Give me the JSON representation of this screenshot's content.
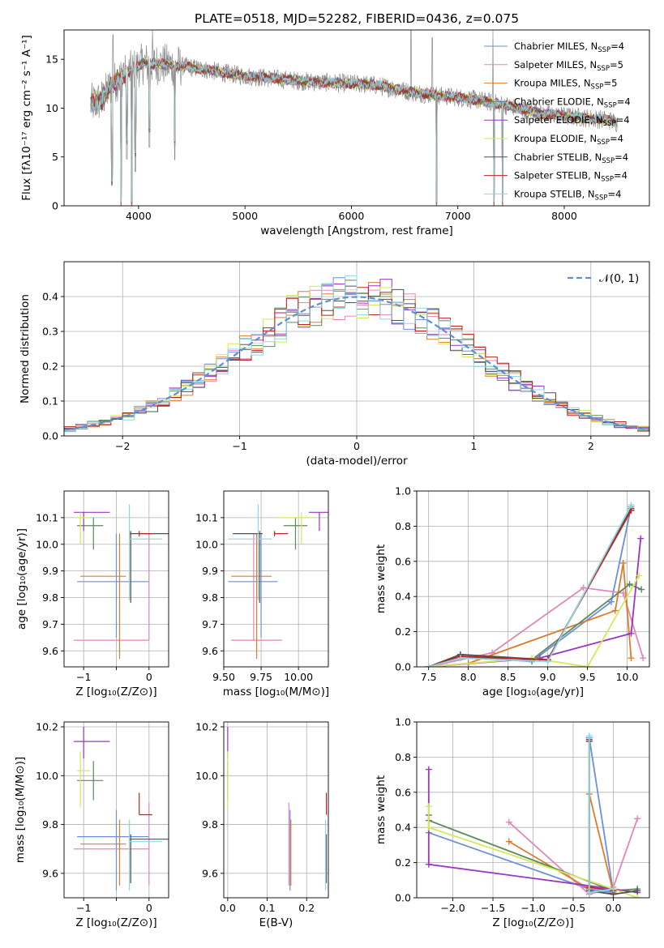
{
  "figure": {
    "title": "PLATE=0518, MJD=52282, FIBERID=0436, z=0.075"
  },
  "colors": {
    "Chabrier MILES": "#6c8fdc",
    "Salpeter MILES": "#e486b8",
    "Kroupa MILES": "#e07b2c",
    "Chabrier ELODIE": "#5c8a5c",
    "Salpeter ELODIE": "#9c35c0",
    "Kroupa ELODIE": "#d4e85a",
    "Chabrier STELIB": "#505050",
    "Salpeter STELIB": "#c0241c",
    "Kroupa STELIB": "#8ad8e4",
    "data": "#8c8c8c",
    "gaussian": "#5b8fd8",
    "grid": "#b0b0b0"
  },
  "chart_data": [
    {
      "id": "spectrum",
      "type": "line",
      "xlabel": "wavelength [Angstrom, rest frame]",
      "ylabel": "Flux [fλ10⁻¹⁷ erg cm⁻² s⁻¹ A⁻¹]",
      "xlim": [
        3300,
        8800
      ],
      "ylim": [
        0,
        18
      ],
      "xticks": [
        4000,
        5000,
        6000,
        7000,
        8000
      ],
      "yticks": [
        0,
        5,
        10,
        15
      ],
      "grid": false,
      "legend_position": "top-right",
      "legend": [
        {
          "label": "Chabrier MILES, N",
          "sub": "SSP",
          "suffix": "=4",
          "color_key": "Chabrier MILES"
        },
        {
          "label": "Salpeter MILES, N",
          "sub": "SSP",
          "suffix": "=5",
          "color_key": "Salpeter MILES"
        },
        {
          "label": "Kroupa MILES, N",
          "sub": "SSP",
          "suffix": "=5",
          "color_key": "Kroupa MILES"
        },
        {
          "label": "Chabrier ELODIE, N",
          "sub": "SSP",
          "suffix": "=4",
          "color_key": "Chabrier ELODIE"
        },
        {
          "label": "Salpeter ELODIE, N",
          "sub": "SSP",
          "suffix": "=4",
          "color_key": "Salpeter ELODIE"
        },
        {
          "label": "Kroupa ELODIE, N",
          "sub": "SSP",
          "suffix": "=4",
          "color_key": "Kroupa ELODIE"
        },
        {
          "label": "Chabrier STELIB, N",
          "sub": "SSP",
          "suffix": "=4",
          "color_key": "Chabrier STELIB"
        },
        {
          "label": "Salpeter STELIB, N",
          "sub": "SSP",
          "suffix": "=4",
          "color_key": "Salpeter STELIB"
        },
        {
          "label": "Kroupa STELIB, N",
          "sub": "SSP",
          "suffix": "=4",
          "color_key": "Kroupa STELIB"
        }
      ],
      "continuum": {
        "x": [
          3550,
          3650,
          3750,
          3850,
          3950,
          4050,
          4200,
          4400,
          4600,
          4800,
          5000,
          5200,
          5400,
          5600,
          5800,
          6000,
          6200,
          6400,
          6600,
          6800,
          7000,
          7200,
          7400,
          7600,
          7800,
          8000,
          8200,
          8400,
          8500
        ],
        "y": [
          10.4,
          10.8,
          12.4,
          13.3,
          13.9,
          14.6,
          14.5,
          14.3,
          14.0,
          13.6,
          13.3,
          13.1,
          12.9,
          12.7,
          12.6,
          12.5,
          12.4,
          12.0,
          11.6,
          11.3,
          11.1,
          10.8,
          10.4,
          9.9,
          9.4,
          9.2,
          9.0,
          8.8,
          8.5
        ]
      },
      "model_dips": [
        {
          "x": 3750,
          "y": 2.1
        },
        {
          "x": 3835,
          "y": 0
        },
        {
          "x": 3890,
          "y": 6.3
        },
        {
          "x": 3935,
          "y": 0
        },
        {
          "x": 3970,
          "y": 5.0
        },
        {
          "x": 4102,
          "y": 7.5
        },
        {
          "x": 4340,
          "y": 6.2
        },
        {
          "x": 6800,
          "y": 0
        },
        {
          "x": 7340,
          "y": 0
        },
        {
          "x": 7420,
          "y": 0
        }
      ],
      "data_spikes": [
        {
          "x": 3760,
          "y": 17.5
        },
        {
          "x": 3970,
          "y": 18
        },
        {
          "x": 4130,
          "y": 18
        },
        {
          "x": 6560,
          "y": 18
        },
        {
          "x": 6760,
          "y": 17.2
        },
        {
          "x": 7330,
          "y": 18
        }
      ],
      "data_noise": 1.0
    },
    {
      "id": "residuals",
      "type": "bar",
      "xlabel": "(data-model)/error",
      "ylabel": "Normed distribution",
      "xlim": [
        -2.5,
        2.5
      ],
      "ylim": [
        0,
        0.5
      ],
      "xticks": [
        -2,
        -1,
        0,
        1,
        2
      ],
      "yticks": [
        0.0,
        0.1,
        0.2,
        0.3,
        0.4
      ],
      "grid": true,
      "legend_position": "top-right",
      "legend_label": "𝒩(0, 1)",
      "bins": {
        "start": -2.5,
        "width": 0.1,
        "count": 50
      },
      "gaussian": {
        "mean": 0,
        "sigma": 1
      }
    },
    {
      "id": "age-vs-Z",
      "type": "scatter",
      "xlabel": "Z [log₁₀(Z/Z⊙)]",
      "ylabel": "age  [log₁₀(age/yr)]",
      "xlim": [
        -1.3,
        0.3
      ],
      "ylim": [
        9.54,
        10.2
      ],
      "xticks": [
        -1,
        -0.5,
        0
      ],
      "xticklabels": [
        "−1",
        "",
        "0"
      ],
      "yticks": [
        9.6,
        9.7,
        9.8,
        9.9,
        10.0,
        10.1
      ],
      "yticklabels": [
        "9.6",
        "9.7",
        "9.8",
        "9.9",
        "10.0",
        "10.1"
      ],
      "grid": true
    },
    {
      "id": "age-vs-mass",
      "type": "scatter",
      "xlabel": "mass [log₁₀(M/M⊙)]",
      "ylabel": "",
      "xlim": [
        9.5,
        10.2
      ],
      "ylim": [
        9.54,
        10.2
      ],
      "xticks": [
        9.5,
        9.75,
        10.0
      ],
      "xticklabels": [
        "9.50",
        "9.75",
        "10.00"
      ],
      "yticks": [
        9.6,
        9.7,
        9.8,
        9.9,
        10.0,
        10.1
      ],
      "yticklabels": [
        "9.6",
        "9.7",
        "9.8",
        "9.9",
        "10.0",
        "10.1"
      ],
      "grid": true
    },
    {
      "id": "mass-weight-vs-age",
      "type": "line",
      "xlabel": "age  [log₁₀(age/yr)]",
      "ylabel": "mass weight",
      "xlim": [
        7.35,
        10.28
      ],
      "ylim": [
        0,
        1
      ],
      "xticks": [
        7.5,
        8.0,
        8.5,
        9.0,
        9.5,
        10.0
      ],
      "xticklabels": [
        "7.5",
        "8.0",
        "8.5",
        "9.0",
        "9.5",
        "10.0"
      ],
      "yticks": [
        0,
        0.2,
        0.4,
        0.6,
        0.8,
        1.0
      ],
      "yticklabels": [
        "0.0",
        "0.2",
        "0.4",
        "0.6",
        "0.8",
        "1.0"
      ],
      "grid": true,
      "series": [
        {
          "color_key": "Chabrier MILES",
          "points": [
            [
              7.5,
              0.0
            ],
            [
              7.9,
              0.06
            ],
            [
              8.8,
              0.03
            ],
            [
              9.8,
              0.37
            ],
            [
              10.05,
              0.91
            ]
          ]
        },
        {
          "color_key": "Salpeter MILES",
          "points": [
            [
              7.5,
              0.0
            ],
            [
              8.3,
              0.08
            ],
            [
              9.45,
              0.45
            ],
            [
              9.95,
              0.42
            ],
            [
              10.2,
              0.05
            ]
          ]
        },
        {
          "color_key": "Kroupa MILES",
          "points": [
            [
              7.5,
              0.0
            ],
            [
              8.0,
              0.02
            ],
            [
              9.85,
              0.32
            ],
            [
              9.95,
              0.59
            ],
            [
              10.05,
              0.05
            ]
          ]
        },
        {
          "color_key": "Chabrier ELODIE",
          "points": [
            [
              7.5,
              0.0
            ],
            [
              7.9,
              0.05
            ],
            [
              8.8,
              0.04
            ],
            [
              10.03,
              0.47
            ],
            [
              10.18,
              0.44
            ]
          ]
        },
        {
          "color_key": "Salpeter ELODIE",
          "points": [
            [
              7.5,
              0.0
            ],
            [
              8.9,
              0.05
            ],
            [
              10.05,
              0.19
            ],
            [
              10.17,
              0.73
            ]
          ]
        },
        {
          "color_key": "Kroupa ELODIE",
          "points": [
            [
              7.5,
              0.0
            ],
            [
              8.8,
              0.05
            ],
            [
              9.5,
              0.0
            ],
            [
              10.15,
              0.52
            ]
          ]
        },
        {
          "color_key": "Chabrier STELIB",
          "points": [
            [
              7.5,
              0.0
            ],
            [
              7.9,
              0.07
            ],
            [
              9.0,
              0.04
            ],
            [
              10.05,
              0.9
            ]
          ]
        },
        {
          "color_key": "Salpeter STELIB",
          "points": [
            [
              7.5,
              0.0
            ],
            [
              7.9,
              0.06
            ],
            [
              9.0,
              0.04
            ],
            [
              10.05,
              0.89
            ]
          ]
        },
        {
          "color_key": "Kroupa STELIB",
          "points": [
            [
              7.5,
              0.0
            ],
            [
              7.9,
              0.05
            ],
            [
              9.0,
              0.03
            ],
            [
              10.05,
              0.92
            ]
          ]
        }
      ]
    },
    {
      "id": "mass-vs-Z",
      "type": "scatter",
      "xlabel": "Z [log₁₀(Z/Z⊙)]",
      "ylabel": "mass [log₁₀(M/M⊙)]",
      "xlim": [
        -1.3,
        0.3
      ],
      "ylim": [
        9.5,
        10.22
      ],
      "xticks": [
        -1,
        -0.5,
        0
      ],
      "xticklabels": [
        "−1",
        "",
        "0"
      ],
      "yticks": [
        9.6,
        9.8,
        10.0,
        10.2
      ],
      "yticklabels": [
        "9.6",
        "9.8",
        "10.0",
        "10.2"
      ],
      "grid": true
    },
    {
      "id": "mass-vs-EBV",
      "type": "scatter",
      "xlabel": "E(B-V)",
      "ylabel": "",
      "xlim": [
        -0.01,
        0.255
      ],
      "ylim": [
        9.5,
        10.22
      ],
      "xticks": [
        0.0,
        0.1,
        0.2
      ],
      "xticklabels": [
        "0.0",
        "0.1",
        "0.2"
      ],
      "yticks": [
        9.6,
        9.8,
        10.0,
        10.2
      ],
      "yticklabels": [
        "9.6",
        "9.8",
        "10.0",
        "10.2"
      ],
      "grid": true
    },
    {
      "id": "mass-weight-vs-Z",
      "type": "line",
      "xlabel": "Z [log₁₀(Z/Z⊙)]",
      "ylabel": "mass weight",
      "xlim": [
        -2.45,
        0.45
      ],
      "ylim": [
        0,
        1
      ],
      "xticks": [
        -2.0,
        -1.5,
        -1.0,
        -0.5,
        0.0
      ],
      "xticklabels": [
        "−2.0",
        "−1.5",
        "−1.0",
        "−0.5",
        "0.0"
      ],
      "yticks": [
        0,
        0.2,
        0.4,
        0.6,
        0.8,
        1.0
      ],
      "yticklabels": [
        "0.0",
        "0.2",
        "0.4",
        "0.6",
        "0.8",
        "1.0"
      ],
      "grid": true,
      "series": [
        {
          "color_key": "Chabrier MILES",
          "points": [
            [
              -2.3,
              0.37
            ],
            [
              -0.3,
              0.05
            ],
            [
              0.0,
              0.03
            ],
            [
              -0.3,
              0.91
            ]
          ]
        },
        {
          "color_key": "Salpeter MILES",
          "points": [
            [
              -1.3,
              0.43
            ],
            [
              -0.3,
              0.02
            ],
            [
              0.0,
              0.06
            ],
            [
              0.3,
              0.45
            ]
          ]
        },
        {
          "color_key": "Kroupa MILES",
          "points": [
            [
              -1.3,
              0.32
            ],
            [
              -0.3,
              0.05
            ],
            [
              -0.3,
              0.59
            ],
            [
              0.0,
              0.03
            ]
          ]
        },
        {
          "color_key": "Chabrier ELODIE",
          "points": [
            [
              -2.3,
              0.47
            ],
            [
              -2.3,
              0.44
            ],
            [
              0.0,
              0.04
            ],
            [
              0.3,
              0.05
            ]
          ]
        },
        {
          "color_key": "Salpeter ELODIE",
          "points": [
            [
              -2.3,
              0.73
            ],
            [
              -2.3,
              0.19
            ],
            [
              0.0,
              0.05
            ],
            [
              0.3,
              0.03
            ]
          ]
        },
        {
          "color_key": "Kroupa ELODIE",
          "points": [
            [
              -2.3,
              0.52
            ],
            [
              -2.3,
              0.4
            ],
            [
              0.0,
              0.05
            ],
            [
              0.3,
              0.0
            ]
          ]
        },
        {
          "color_key": "Chabrier STELIB",
          "points": [
            [
              -0.3,
              0.9
            ],
            [
              -0.3,
              0.04
            ],
            [
              0.0,
              0.02
            ],
            [
              0.3,
              0.04
            ]
          ]
        },
        {
          "color_key": "Salpeter STELIB",
          "points": [
            [
              -0.3,
              0.89
            ],
            [
              -0.3,
              0.06
            ],
            [
              0.0,
              0.04
            ]
          ]
        },
        {
          "color_key": "Kroupa STELIB",
          "points": [
            [
              -0.3,
              0.92
            ],
            [
              -0.3,
              0.03
            ],
            [
              0.0,
              0.05
            ]
          ]
        }
      ]
    }
  ],
  "populations": [
    {
      "color_key": "Chabrier MILES",
      "Z": -0.5,
      "Zlo": -1.1,
      "Zhi": 0.0,
      "age": 9.86,
      "agelo": 9.65,
      "agehi": 10.04,
      "mass": 9.75,
      "masslo": 9.53,
      "masshi": 9.86,
      "ebv": 0.158
    },
    {
      "color_key": "Salpeter MILES",
      "Z": 0.0,
      "Zlo": -1.15,
      "Zhi": 0.0,
      "age": 9.64,
      "agelo": 9.64,
      "agehi": 10.04,
      "mass": 9.7,
      "masslo": 9.55,
      "masshi": 9.89,
      "ebv": 0.155
    },
    {
      "color_key": "Kroupa MILES",
      "Z": -0.45,
      "Zlo": -1.05,
      "Zhi": -0.35,
      "age": 9.88,
      "agelo": 9.57,
      "agehi": 10.04,
      "mass": 9.72,
      "masslo": 9.55,
      "masshi": 9.82,
      "ebv": 0.16
    },
    {
      "color_key": "Chabrier ELODIE",
      "Z": -0.85,
      "Zlo": -1.1,
      "Zhi": -0.7,
      "age": 10.07,
      "agelo": 9.98,
      "agehi": 10.1,
      "mass": 9.98,
      "masslo": 9.9,
      "masshi": 10.06,
      "ebv": 0.0
    },
    {
      "color_key": "Salpeter ELODIE",
      "Z": -1.0,
      "Zlo": -1.15,
      "Zhi": -0.6,
      "age": 10.12,
      "agelo": 10.05,
      "agehi": 10.12,
      "mass": 10.14,
      "masslo": 10.07,
      "masshi": 10.2,
      "ebv": 0.0
    },
    {
      "color_key": "Kroupa ELODIE",
      "Z": -1.05,
      "Zlo": -1.1,
      "Zhi": -0.9,
      "age": 10.1,
      "agelo": 10.0,
      "agehi": 10.12,
      "mass": 10.02,
      "masslo": 9.87,
      "masshi": 10.1,
      "ebv": 0.0
    },
    {
      "color_key": "Chabrier STELIB",
      "Z": -0.28,
      "Zlo": -0.3,
      "Zhi": 0.3,
      "age": 10.04,
      "agelo": 9.78,
      "agehi": 10.05,
      "mass": 9.74,
      "masslo": 9.56,
      "masshi": 9.76,
      "ebv": 0.25
    },
    {
      "color_key": "Salpeter STELIB",
      "Z": -0.15,
      "Zlo": -0.15,
      "Zhi": 0.05,
      "age": 10.04,
      "agelo": 10.03,
      "agehi": 10.05,
      "mass": 9.84,
      "masslo": 9.84,
      "masshi": 9.93,
      "ebv": 0.25
    },
    {
      "color_key": "Kroupa STELIB",
      "Z": -0.3,
      "Zlo": -0.3,
      "Zhi": 0.2,
      "age": 10.02,
      "agelo": 9.79,
      "agehi": 10.15,
      "mass": 9.73,
      "masslo": 9.53,
      "masshi": 9.82,
      "ebv": 0.248
    }
  ]
}
